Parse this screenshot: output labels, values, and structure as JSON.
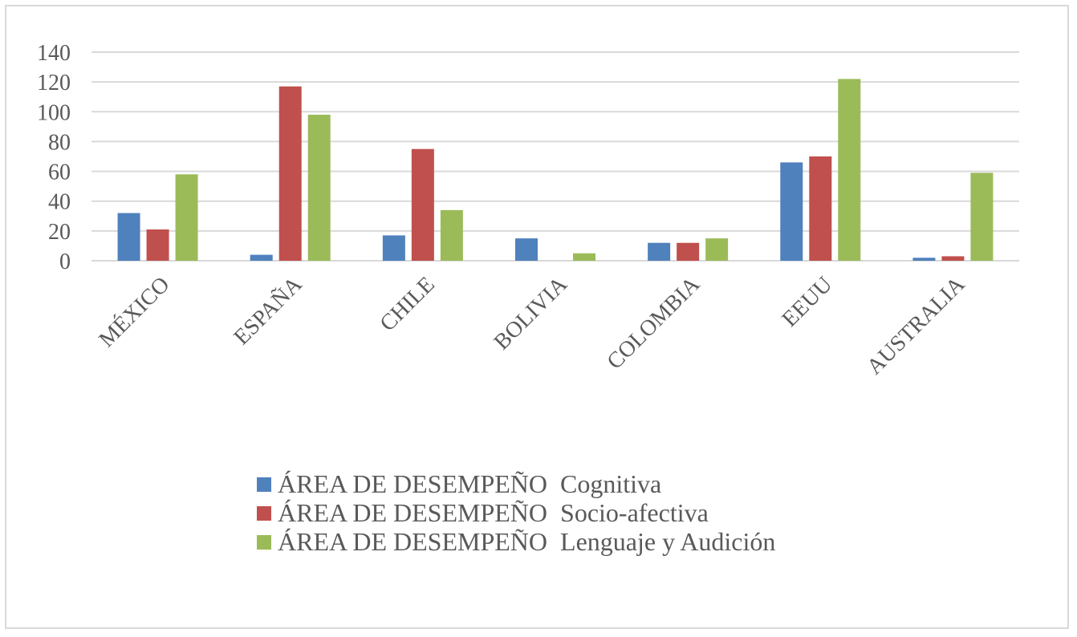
{
  "chart_data": {
    "type": "bar",
    "title": "",
    "xlabel": "",
    "ylabel": "",
    "categories": [
      "MÉXICO",
      "ESPAÑA",
      "CHILE",
      "BOLIVIA",
      "COLOMBIA",
      "EEUU",
      "AUSTRALIA"
    ],
    "series": [
      {
        "name": "ÁREA DE DESEMPEÑO  Cognitiva",
        "color": "#4f81bd",
        "values": [
          32,
          4,
          17,
          15,
          12,
          66,
          2
        ]
      },
      {
        "name": "ÁREA DE DESEMPEÑO  Socio-afectiva",
        "color": "#c0504d",
        "values": [
          21,
          117,
          75,
          0,
          12,
          70,
          3
        ]
      },
      {
        "name": "ÁREA DE DESEMPEÑO  Lenguaje y Audición",
        "color": "#9bbb59",
        "values": [
          58,
          98,
          34,
          5,
          15,
          122,
          59
        ]
      }
    ],
    "ylim": [
      0,
      140
    ],
    "yticks": [
      0,
      20,
      40,
      60,
      80,
      100,
      120,
      140
    ],
    "grid": true,
    "legend": "bottom-center"
  }
}
